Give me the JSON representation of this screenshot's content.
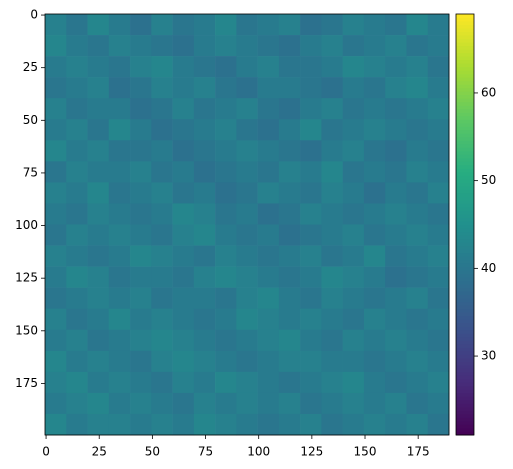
{
  "chart_data": {
    "type": "heatmap",
    "xlim": [
      -0.5,
      189.5
    ],
    "ylim": [
      199.5,
      -0.5
    ],
    "xticks": [
      0,
      25,
      50,
      75,
      100,
      125,
      150,
      175
    ],
    "yticks": [
      0,
      25,
      50,
      75,
      100,
      125,
      150,
      175
    ],
    "clim": [
      21,
      69
    ],
    "cticks": [
      30,
      40,
      50,
      60
    ],
    "colorscale": [
      "#440154",
      "#472c7a",
      "#3b518b",
      "#2c718e",
      "#21908d",
      "#27ad81",
      "#5cc863",
      "#aadc32",
      "#fde725"
    ],
    "values": [
      [
        42,
        40,
        43,
        41,
        39,
        42,
        40,
        41,
        43,
        40,
        41,
        42,
        39,
        40,
        42,
        41,
        40,
        43,
        41
      ],
      [
        43,
        41,
        40,
        42,
        41,
        40,
        39,
        41,
        42,
        41,
        40,
        39,
        41,
        42,
        40,
        41,
        42,
        40,
        41
      ],
      [
        41,
        42,
        41,
        40,
        42,
        43,
        41,
        40,
        39,
        41,
        42,
        40,
        40,
        41,
        43,
        42,
        41,
        42,
        40
      ],
      [
        40,
        41,
        42,
        39,
        40,
        42,
        41,
        42,
        40,
        39,
        41,
        41,
        40,
        39,
        41,
        40,
        42,
        43,
        41
      ],
      [
        42,
        40,
        41,
        41,
        39,
        40,
        42,
        40,
        41,
        42,
        40,
        39,
        41,
        42,
        40,
        41,
        40,
        41,
        42
      ],
      [
        41,
        42,
        40,
        43,
        41,
        39,
        40,
        41,
        42,
        40,
        39,
        41,
        43,
        40,
        41,
        42,
        41,
        40,
        41
      ],
      [
        43,
        41,
        42,
        40,
        40,
        41,
        39,
        40,
        41,
        42,
        41,
        40,
        39,
        41,
        42,
        40,
        39,
        41,
        40
      ],
      [
        40,
        42,
        41,
        41,
        42,
        40,
        41,
        39,
        40,
        41,
        40,
        42,
        41,
        43,
        40,
        41,
        40,
        42,
        41
      ],
      [
        42,
        41,
        43,
        40,
        41,
        42,
        40,
        41,
        39,
        40,
        42,
        41,
        40,
        42,
        41,
        39,
        41,
        40,
        42
      ],
      [
        41,
        40,
        42,
        41,
        40,
        41,
        43,
        42,
        40,
        41,
        39,
        40,
        42,
        41,
        40,
        41,
        42,
        41,
        40
      ],
      [
        40,
        42,
        41,
        42,
        41,
        40,
        42,
        43,
        41,
        40,
        41,
        39,
        40,
        41,
        42,
        40,
        41,
        42,
        41
      ],
      [
        42,
        41,
        40,
        41,
        43,
        42,
        41,
        40,
        42,
        41,
        40,
        41,
        42,
        40,
        41,
        43,
        40,
        41,
        42
      ],
      [
        41,
        43,
        42,
        40,
        41,
        41,
        40,
        42,
        43,
        42,
        41,
        40,
        41,
        43,
        42,
        41,
        39,
        40,
        41
      ],
      [
        40,
        41,
        42,
        41,
        42,
        40,
        41,
        41,
        40,
        42,
        43,
        41,
        40,
        42,
        41,
        40,
        41,
        42,
        40
      ],
      [
        42,
        40,
        41,
        43,
        41,
        42,
        41,
        40,
        41,
        43,
        42,
        41,
        42,
        41,
        40,
        42,
        41,
        40,
        41
      ],
      [
        41,
        42,
        40,
        41,
        42,
        43,
        42,
        41,
        40,
        41,
        42,
        43,
        41,
        40,
        42,
        41,
        42,
        41,
        40
      ],
      [
        43,
        41,
        42,
        41,
        40,
        42,
        43,
        42,
        41,
        40,
        41,
        42,
        42,
        41,
        41,
        40,
        41,
        42,
        41
      ],
      [
        42,
        43,
        41,
        42,
        41,
        40,
        42,
        41,
        43,
        42,
        41,
        40,
        41,
        42,
        43,
        41,
        40,
        41,
        42
      ],
      [
        41,
        42,
        43,
        41,
        42,
        41,
        40,
        42,
        41,
        42,
        41,
        42,
        40,
        41,
        42,
        41,
        42,
        40,
        41
      ],
      [
        43,
        41,
        42,
        42,
        41,
        42,
        41,
        43,
        42,
        41,
        40,
        41,
        42,
        40,
        41,
        42,
        41,
        42,
        40
      ]
    ]
  }
}
